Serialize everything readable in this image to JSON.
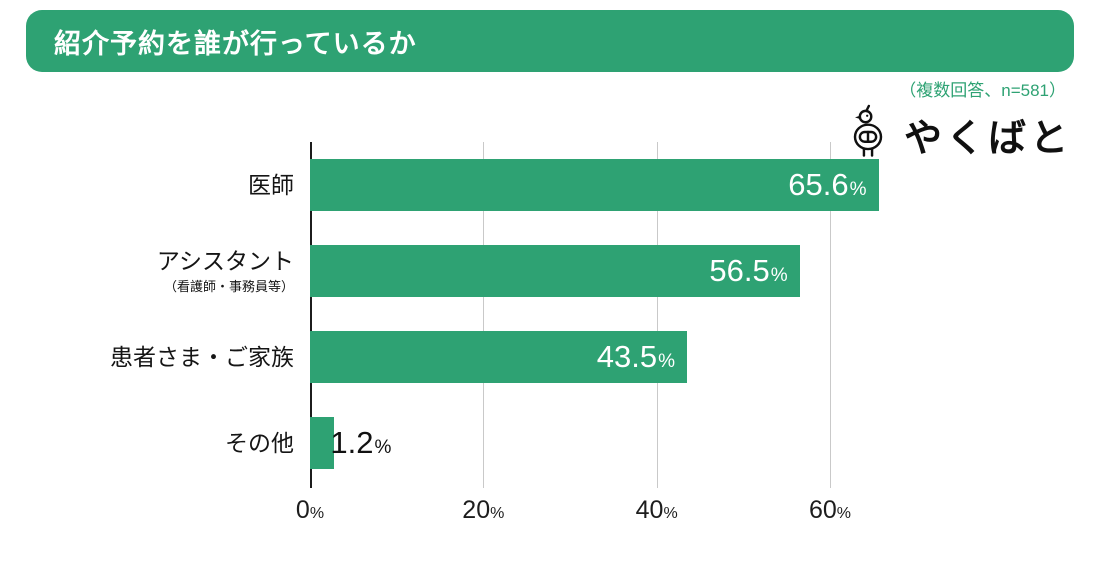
{
  "header": {
    "title": "紹介予約を誰が行っているか",
    "note": "（複数回答、n=581）"
  },
  "logo": {
    "text": "やくばと",
    "icon": "bird-logo-icon"
  },
  "colors": {
    "accent": "#2ea273",
    "grid": "#c9c9c9",
    "axis": "#1c1c1c"
  },
  "chart_data": {
    "type": "bar",
    "orientation": "horizontal",
    "title": "紹介予約を誰が行っているか",
    "categories": [
      "医師",
      "アシスタント",
      "患者さま・ご家族",
      "その他"
    ],
    "sublabels": [
      "",
      "（看護師・事務員等）",
      "",
      ""
    ],
    "values": [
      65.6,
      56.5,
      43.5,
      1.2
    ],
    "unit": "%",
    "xticks": [
      0,
      20,
      40,
      60
    ],
    "xlim": [
      0,
      70
    ],
    "bar_color": "#2ea273",
    "grid": true,
    "legend": "none"
  }
}
